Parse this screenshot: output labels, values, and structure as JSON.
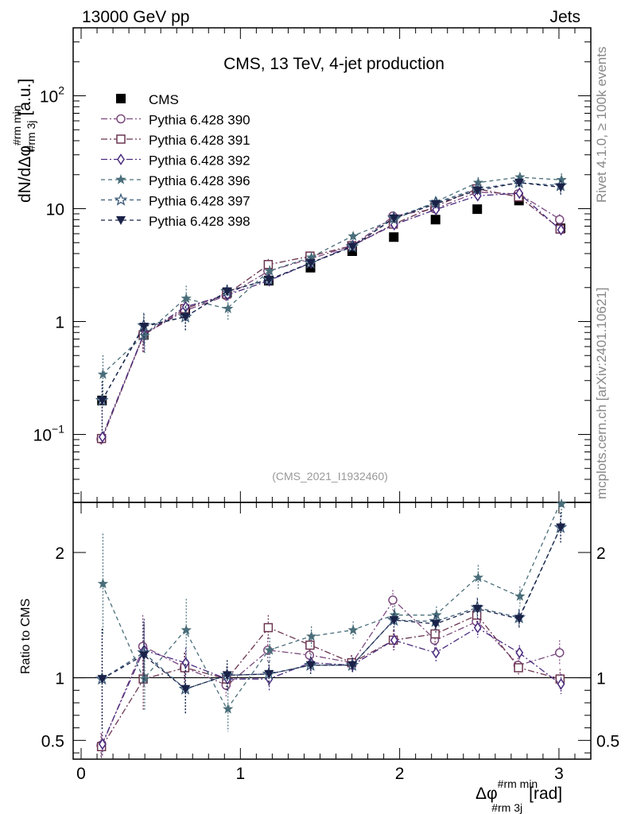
{
  "header": {
    "left": "13000 GeV pp",
    "right": "Jets",
    "plot_title": "CMS, 13 TeV, 4-jet production",
    "analysis_id": "(CMS_2021_I1932460)",
    "side_rivet": "Rivet 4.1.0, ≥ 100k events",
    "side_mcplots": "mcplots.cern.ch [arXiv:2401.10621]"
  },
  "axes": {
    "y_main": {
      "base": "dN/dΔφ",
      "sup": "#rm min",
      "sub": "#rm 3j",
      "unit": "[a.u.]"
    },
    "y_ratio": "Ratio to CMS",
    "x": {
      "base": "Δφ",
      "sup": "#rm min",
      "sub": "#rm 3j",
      "unit": "[rad]"
    },
    "x_ticks": [
      "0",
      "1",
      "2",
      "3"
    ],
    "y_main_ticks": [
      {
        "v": 0.1,
        "base": "10",
        "exp": "−1"
      },
      {
        "v": 1,
        "base": "1",
        "exp": ""
      },
      {
        "v": 10,
        "base": "10",
        "exp": ""
      },
      {
        "v": 100,
        "base": "10",
        "exp": "2"
      }
    ],
    "y_ratio_ticks": [
      "0.5",
      "1",
      "2"
    ]
  },
  "colors": {
    "data": "#000000",
    "s390": "#7b4a7e",
    "s391": "#6b3550",
    "s392": "#4a2a7e",
    "s396": "#4a6e7a",
    "s397": "#3a5a78",
    "s398": "#1a2248"
  },
  "chart_data": {
    "type": "scatter",
    "title": "CMS, 13 TeV, 4-jet production",
    "xlabel": "Δφ^{#rm min}_{#rm 3j} [rad]",
    "ylabel": "dN/dΔφ^{#rm min}_{#rm 3j} [a.u.]",
    "xlim": [
      -0.05,
      3.2
    ],
    "ylim": [
      0.025,
      400
    ],
    "yscale": "log",
    "ratio_ylim": [
      0.35,
      2.4
    ],
    "x": [
      0.131,
      0.393,
      0.654,
      0.916,
      1.178,
      1.44,
      1.702,
      1.963,
      2.225,
      2.487,
      2.749,
      3.01
    ],
    "series": [
      {
        "name": "CMS",
        "marker": "square-filled",
        "line": "none",
        "color": "#000000",
        "values": [
          0.2,
          0.76,
          1.2,
          1.8,
          2.3,
          3.0,
          4.2,
          5.6,
          8.0,
          9.9,
          11.8,
          6.7
        ],
        "ratio": [
          1,
          1,
          1,
          1,
          1,
          1,
          1,
          1,
          1,
          1,
          1,
          1
        ]
      },
      {
        "name": "Pythia 6.428 390",
        "marker": "circle-open",
        "line": "dashdot",
        "color": "#7b4a7e",
        "values": [
          0.091,
          0.77,
          1.25,
          1.7,
          2.8,
          3.6,
          4.7,
          8.6,
          10.0,
          14.0,
          13.5,
          8.0
        ],
        "ratio": [
          0.46,
          1.25,
          1.08,
          0.94,
          1.22,
          1.18,
          1.12,
          1.62,
          1.3,
          1.45,
          1.1,
          1.2
        ],
        "err_ratio": [
          0.1,
          0.25,
          0.12,
          0.1,
          0.1,
          0.07,
          0.06,
          0.08,
          0.07,
          0.08,
          0.06,
          0.1
        ]
      },
      {
        "name": "Pythia 6.428 391",
        "marker": "square-open",
        "line": "dashdot",
        "color": "#6b3550",
        "values": [
          0.092,
          0.76,
          1.3,
          1.75,
          3.2,
          3.8,
          4.7,
          7.3,
          10.5,
          15.0,
          12.7,
          6.6
        ],
        "ratio": [
          0.45,
          0.99,
          1.08,
          0.99,
          1.4,
          1.26,
          1.12,
          1.3,
          1.35,
          1.5,
          1.08,
          0.99
        ],
        "err_ratio": [
          0.1,
          0.25,
          0.12,
          0.1,
          0.1,
          0.07,
          0.06,
          0.08,
          0.07,
          0.08,
          0.06,
          0.08
        ]
      },
      {
        "name": "Pythia 6.428 392",
        "marker": "diamond-open",
        "line": "dashdot",
        "color": "#4a2a7e",
        "values": [
          0.095,
          0.77,
          1.35,
          1.72,
          2.3,
          3.3,
          4.7,
          7.2,
          9.8,
          13.0,
          13.7,
          6.5
        ],
        "ratio": [
          0.47,
          1.22,
          1.12,
          0.99,
          0.99,
          1.12,
          1.1,
          1.3,
          1.2,
          1.4,
          1.2,
          0.95
        ],
        "err_ratio": [
          0.1,
          0.25,
          0.12,
          0.1,
          0.1,
          0.07,
          0.06,
          0.08,
          0.07,
          0.08,
          0.06,
          0.08
        ]
      },
      {
        "name": "Pythia 6.428 396",
        "marker": "star-filled",
        "line": "dashed",
        "color": "#4a6e7a",
        "values": [
          0.34,
          0.75,
          1.6,
          1.3,
          2.8,
          3.7,
          5.7,
          8.0,
          11.5,
          17.0,
          19.0,
          18.0
        ],
        "ratio": [
          1.75,
          0.99,
          1.38,
          0.75,
          1.22,
          1.33,
          1.38,
          1.5,
          1.5,
          1.8,
          1.65,
          2.4
        ],
        "err_ratio": [
          0.4,
          0.25,
          0.25,
          0.18,
          0.1,
          0.08,
          0.07,
          0.08,
          0.07,
          0.1,
          0.08,
          0.12
        ]
      },
      {
        "name": "Pythia 6.428 397",
        "marker": "star-open",
        "line": "dashed",
        "color": "#3a5a78",
        "values": [
          0.2,
          0.92,
          1.1,
          1.85,
          2.35,
          3.3,
          4.6,
          8.3,
          11.3,
          15.0,
          17.0,
          16.0
        ],
        "ratio": [
          0.99,
          1.2,
          0.91,
          1.02,
          1.03,
          1.1,
          1.1,
          1.46,
          1.45,
          1.56,
          1.48,
          2.2
        ],
        "err_ratio": [
          0.4,
          0.25,
          0.2,
          0.12,
          0.1,
          0.07,
          0.06,
          0.08,
          0.07,
          0.08,
          0.07,
          0.12
        ]
      },
      {
        "name": "Pythia 6.428 398",
        "marker": "triangle-down-filled",
        "line": "dashed",
        "color": "#1a2248",
        "values": [
          0.2,
          0.9,
          1.1,
          1.85,
          2.35,
          3.3,
          4.6,
          8.2,
          11.0,
          14.5,
          17.0,
          15.5
        ],
        "ratio": [
          0.99,
          1.18,
          0.91,
          1.02,
          1.03,
          1.1,
          1.1,
          1.46,
          1.43,
          1.55,
          1.47,
          2.2
        ],
        "err_ratio": [
          0.4,
          0.25,
          0.2,
          0.12,
          0.1,
          0.07,
          0.06,
          0.08,
          0.07,
          0.08,
          0.07,
          0.12
        ]
      }
    ]
  }
}
